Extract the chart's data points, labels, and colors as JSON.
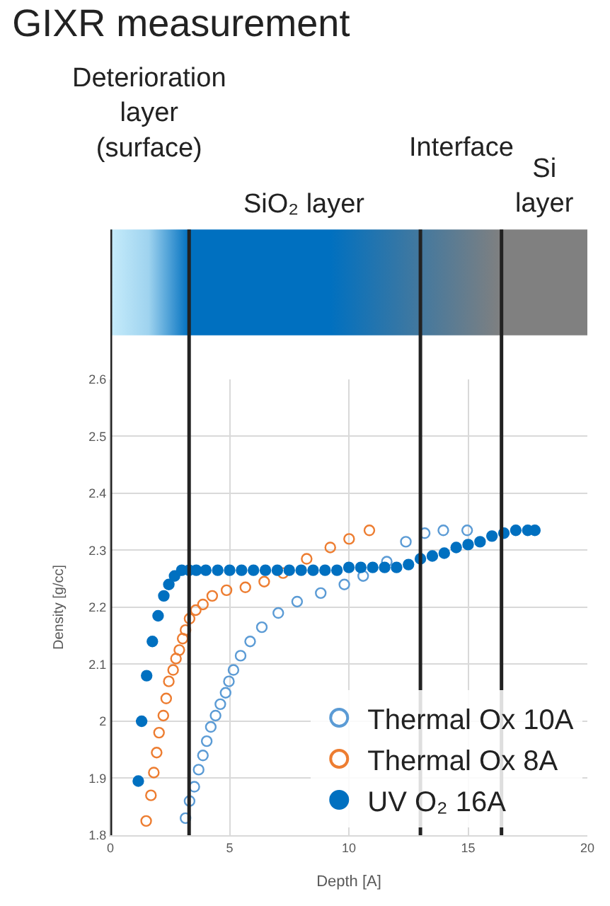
{
  "chart_data": {
    "type": "scatter",
    "title": "GIXR measurement",
    "xlabel": "Depth [A]",
    "ylabel": "Density [g/cc]",
    "xlim": [
      0,
      20
    ],
    "xticks": [
      0,
      5,
      10,
      15,
      20
    ],
    "ylim": [
      1.8,
      2.6
    ],
    "yticks": [
      1.8,
      1.9,
      2,
      2.1,
      2.2,
      2.3,
      2.4,
      2.5,
      2.6
    ],
    "grid": true,
    "legend": "bottom right",
    "series": [
      {
        "name": "Thermal Ox 10A",
        "color": "#5b9bd5",
        "marker": "circle-open",
        "x": [
          3.15,
          3.32,
          3.52,
          3.7,
          3.88,
          4.04,
          4.21,
          4.41,
          4.61,
          4.83,
          4.97,
          5.16,
          5.46,
          5.86,
          6.35,
          7.04,
          7.83,
          8.82,
          9.81,
          10.6,
          11.59,
          12.39,
          13.18,
          13.96,
          14.96
        ],
        "values": [
          1.83,
          1.86,
          1.885,
          1.915,
          1.94,
          1.965,
          1.99,
          2.01,
          2.03,
          2.05,
          2.07,
          2.09,
          2.115,
          2.14,
          2.165,
          2.19,
          2.21,
          2.225,
          2.24,
          2.255,
          2.28,
          2.315,
          2.33,
          2.335,
          2.335
        ]
      },
      {
        "name": "Thermal Ox 8A",
        "color": "#ed7d31",
        "marker": "circle-open",
        "x": [
          1.5,
          1.7,
          1.82,
          1.94,
          2.04,
          2.22,
          2.34,
          2.45,
          2.63,
          2.75,
          2.89,
          3.03,
          3.15,
          3.32,
          3.58,
          3.88,
          4.27,
          4.87,
          5.66,
          6.45,
          7.24,
          8.23,
          9.22,
          10.01,
          10.86
        ],
        "values": [
          1.825,
          1.87,
          1.91,
          1.945,
          1.98,
          2.01,
          2.04,
          2.07,
          2.09,
          2.11,
          2.125,
          2.145,
          2.16,
          2.18,
          2.195,
          2.205,
          2.22,
          2.23,
          2.235,
          2.245,
          2.26,
          2.285,
          2.305,
          2.32,
          2.335
        ]
      },
      {
        "name": "UV O₂ 16A",
        "color": "#0070c0",
        "marker": "circle",
        "x": [
          1.17,
          1.31,
          1.52,
          1.76,
          2.0,
          2.24,
          2.45,
          2.69,
          2.99,
          3.3,
          3.6,
          4,
          4.5,
          5,
          5.5,
          6,
          6.5,
          7,
          7.5,
          8,
          8.5,
          9,
          9.5,
          10,
          10.5,
          11,
          11.5,
          12,
          12.5,
          13,
          13.5,
          14,
          14.5,
          15,
          15.5,
          16,
          16.5,
          17,
          17.5,
          17.8
        ],
        "values": [
          1.895,
          2.0,
          2.08,
          2.14,
          2.185,
          2.22,
          2.24,
          2.255,
          2.265,
          2.265,
          2.265,
          2.265,
          2.265,
          2.265,
          2.265,
          2.265,
          2.265,
          2.265,
          2.265,
          2.265,
          2.265,
          2.265,
          2.265,
          2.27,
          2.27,
          2.27,
          2.27,
          2.27,
          2.275,
          2.285,
          2.29,
          2.295,
          2.305,
          2.31,
          2.315,
          2.325,
          2.33,
          2.335,
          2.335,
          2.335
        ]
      }
    ],
    "annotations": [
      "Deterioration\nlayer\n(surface)",
      "SiO₂ layer",
      "Interface",
      "Si\nlayer"
    ],
    "ref_lines": [
      {
        "axis": "x",
        "value": 0
      },
      {
        "axis": "x",
        "value": 3.3
      },
      {
        "axis": "x",
        "value": 13
      },
      {
        "axis": "x",
        "value": 16.4
      }
    ]
  }
}
